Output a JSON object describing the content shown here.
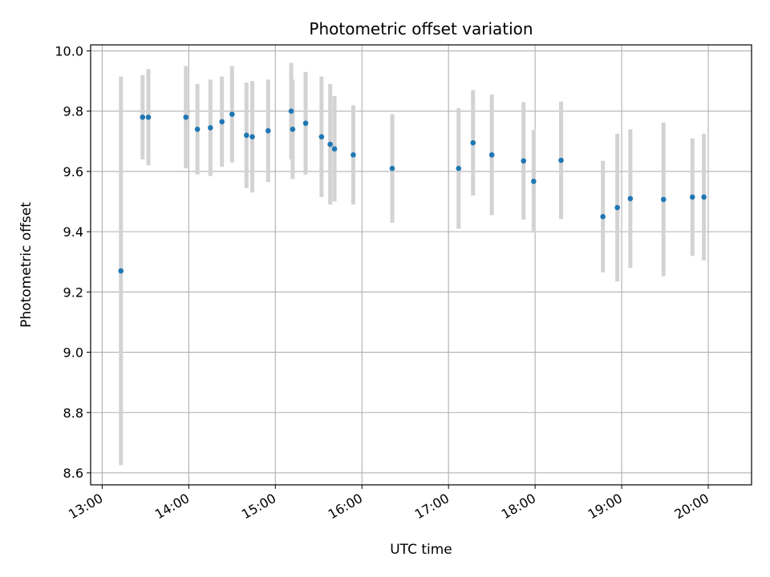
{
  "chart_data": {
    "type": "scatter",
    "title": "Photometric offset variation",
    "xlabel": "UTC time",
    "ylabel": "Photometric offset",
    "x_tick_labels": [
      "13:00",
      "14:00",
      "15:00",
      "16:00",
      "17:00",
      "18:00",
      "19:00",
      "20:00"
    ],
    "y_tick_labels": [
      "8.6",
      "8.8",
      "9.0",
      "9.2",
      "9.4",
      "9.6",
      "9.8",
      "10.0"
    ],
    "xlim": [
      "12:52",
      "20:30"
    ],
    "ylim": [
      8.56,
      10.02
    ],
    "grid": true,
    "colors": {
      "point": "#1f77b4",
      "errorbar": "#d3d3d3",
      "grid": "#b0b0b0",
      "axis": "#000000"
    },
    "points": [
      {
        "t": "13:13",
        "y": 9.27,
        "err": 0.645
      },
      {
        "t": "13:28",
        "y": 9.78,
        "err": 0.14
      },
      {
        "t": "13:32",
        "y": 9.78,
        "err": 0.16
      },
      {
        "t": "13:58",
        "y": 9.78,
        "err": 0.17
      },
      {
        "t": "14:06",
        "y": 9.74,
        "err": 0.15
      },
      {
        "t": "14:15",
        "y": 9.745,
        "err": 0.16
      },
      {
        "t": "14:23",
        "y": 9.765,
        "err": 0.15
      },
      {
        "t": "14:30",
        "y": 9.79,
        "err": 0.16
      },
      {
        "t": "14:40",
        "y": 9.72,
        "err": 0.175
      },
      {
        "t": "14:44",
        "y": 9.715,
        "err": 0.185
      },
      {
        "t": "14:55",
        "y": 9.735,
        "err": 0.17
      },
      {
        "t": "15:11",
        "y": 9.8,
        "err": 0.16
      },
      {
        "t": "15:12",
        "y": 9.74,
        "err": 0.165
      },
      {
        "t": "15:21",
        "y": 9.76,
        "err": 0.17
      },
      {
        "t": "15:32",
        "y": 9.715,
        "err": 0.2
      },
      {
        "t": "15:38",
        "y": 9.69,
        "err": 0.2
      },
      {
        "t": "15:41",
        "y": 9.675,
        "err": 0.175
      },
      {
        "t": "15:54",
        "y": 9.655,
        "err": 0.165
      },
      {
        "t": "16:21",
        "y": 9.61,
        "err": 0.18
      },
      {
        "t": "17:07",
        "y": 9.61,
        "err": 0.2
      },
      {
        "t": "17:17",
        "y": 9.695,
        "err": 0.175
      },
      {
        "t": "17:30",
        "y": 9.655,
        "err": 0.2
      },
      {
        "t": "17:52",
        "y": 9.635,
        "err": 0.195
      },
      {
        "t": "17:59",
        "y": 9.567,
        "err": 0.17
      },
      {
        "t": "18:18",
        "y": 9.637,
        "err": 0.195
      },
      {
        "t": "18:47",
        "y": 9.45,
        "err": 0.185
      },
      {
        "t": "18:57",
        "y": 9.48,
        "err": 0.245
      },
      {
        "t": "19:06",
        "y": 9.51,
        "err": 0.23
      },
      {
        "t": "19:29",
        "y": 9.507,
        "err": 0.255
      },
      {
        "t": "19:49",
        "y": 9.515,
        "err": 0.195
      },
      {
        "t": "19:57",
        "y": 9.515,
        "err": 0.21
      }
    ]
  }
}
